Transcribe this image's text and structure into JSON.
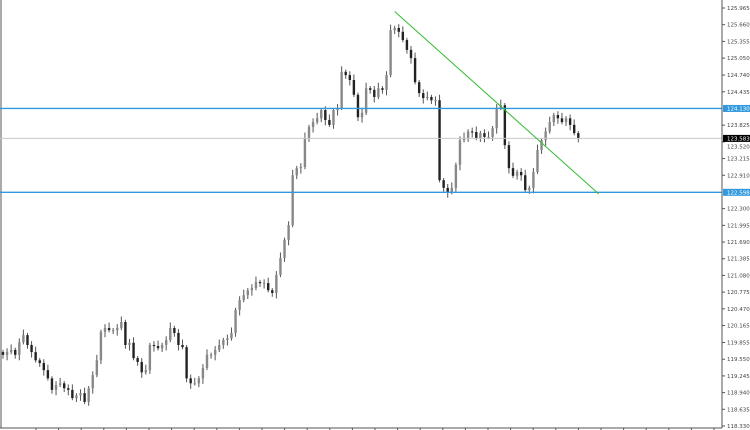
{
  "chart_data": {
    "type": "candlestick",
    "title": "",
    "xlabel": "",
    "ylabel": "",
    "ylim": [
      118.33,
      125.965
    ],
    "grid": false,
    "y_ticks": [
      "125.965",
      "125.660",
      "125.355",
      "125.050",
      "124.740",
      "124.435",
      "123.825",
      "123.520",
      "123.215",
      "122.910",
      "122.300",
      "121.995",
      "121.690",
      "121.385",
      "121.080",
      "120.775",
      "120.470",
      "120.165",
      "119.855",
      "119.550",
      "119.245",
      "118.940",
      "118.635",
      "118.330"
    ],
    "close": [
      119.63,
      119.68,
      119.72,
      119.63,
      119.86,
      119.99,
      119.81,
      119.68,
      119.53,
      119.48,
      119.35,
      119.2,
      118.99,
      119.08,
      119.11,
      119.02,
      118.99,
      118.84,
      118.89,
      118.93,
      118.77,
      119.02,
      119.26,
      119.53,
      120.05,
      120.12,
      120.08,
      120.08,
      120.12,
      120.23,
      119.81,
      119.85,
      119.57,
      119.5,
      119.31,
      119.35,
      119.81,
      119.79,
      119.75,
      119.81,
      119.9,
      120.12,
      120.03,
      119.81,
      119.77,
      119.2,
      119.11,
      119.11,
      119.2,
      119.39,
      119.63,
      119.63,
      119.72,
      119.81,
      119.9,
      119.93,
      120.03,
      120.45,
      120.63,
      120.72,
      120.81,
      120.85,
      120.96,
      120.94,
      120.94,
      120.81,
      120.76,
      121.09,
      121.4,
      121.73,
      122.0,
      122.91,
      123.04,
      123.06,
      123.59,
      123.79,
      123.88,
      123.95,
      124.1,
      123.92,
      123.83,
      124.1,
      124.14,
      124.8,
      124.74,
      124.65,
      124.38,
      123.97,
      124.05,
      124.5,
      124.47,
      124.34,
      124.5,
      124.47,
      124.74,
      125.56,
      125.6,
      125.53,
      125.38,
      125.2,
      125.05,
      124.61,
      124.41,
      124.32,
      124.34,
      124.28,
      124.28,
      122.82,
      122.68,
      122.6,
      122.68,
      123.1,
      123.55,
      123.59,
      123.71,
      123.7,
      123.59,
      123.68,
      123.61,
      123.61,
      123.77,
      124.14,
      124.19,
      123.46,
      123.04,
      122.9,
      122.97,
      122.91,
      122.64,
      122.68,
      122.97,
      123.37,
      123.55,
      123.71,
      123.88,
      124.01,
      123.95,
      123.88,
      123.95,
      123.83,
      123.68,
      123.58
    ],
    "horizontal_lines": [
      {
        "price": 124.13,
        "label": "124.130",
        "color": "#3399dd"
      },
      {
        "price": 122.598,
        "label": "122.598",
        "color": "#3399dd"
      }
    ],
    "current_price": {
      "price": 123.583,
      "label": "123.583",
      "line_color": "#c8c8c8",
      "tag_color": "#000000"
    },
    "trendline": {
      "start_index": 96,
      "start_price": 125.9,
      "end_index": 146,
      "end_price": 122.57,
      "color": "#33bb33"
    },
    "colors": {
      "candle_up": "#888888",
      "candle_down": "#222222",
      "wick": "#555555",
      "axis": "#555555"
    }
  }
}
